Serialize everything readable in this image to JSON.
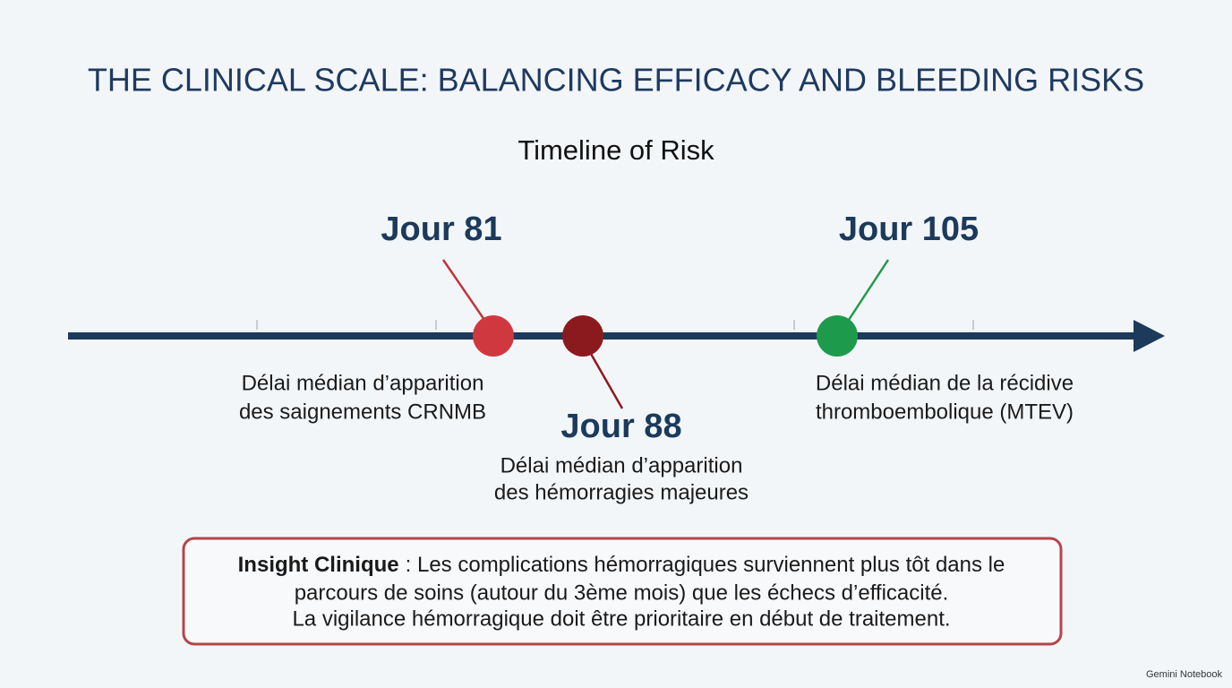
{
  "header": {
    "title": "THE CLINICAL SCALE: BALANCING EFFICACY AND BLEEDING RISKS",
    "subtitle": "Timeline of Risk"
  },
  "events": [
    {
      "label": "Jour 81",
      "description": [
        "Délai médian d’apparition",
        "des saignements CRNMB"
      ]
    },
    {
      "label": "Jour 88",
      "description": [
        "Délai médian d’apparition",
        "des hémorragies majeures"
      ]
    },
    {
      "label": "Jour 105",
      "description": [
        "Délai médian de la récidive",
        "thromboembolique (MTEV)"
      ]
    }
  ],
  "insight": {
    "heading": "Insight Clinique",
    "lines": [
      ": Les complications hémorragiques surviennent plus tôt dans le",
      "parcours de soins (autour du 3ème mois) que les échecs d’efficacité.",
      "La vigilance hémorragique doit être prioritaire en début de traitement."
    ]
  },
  "footer": "Gemini Notebook"
}
